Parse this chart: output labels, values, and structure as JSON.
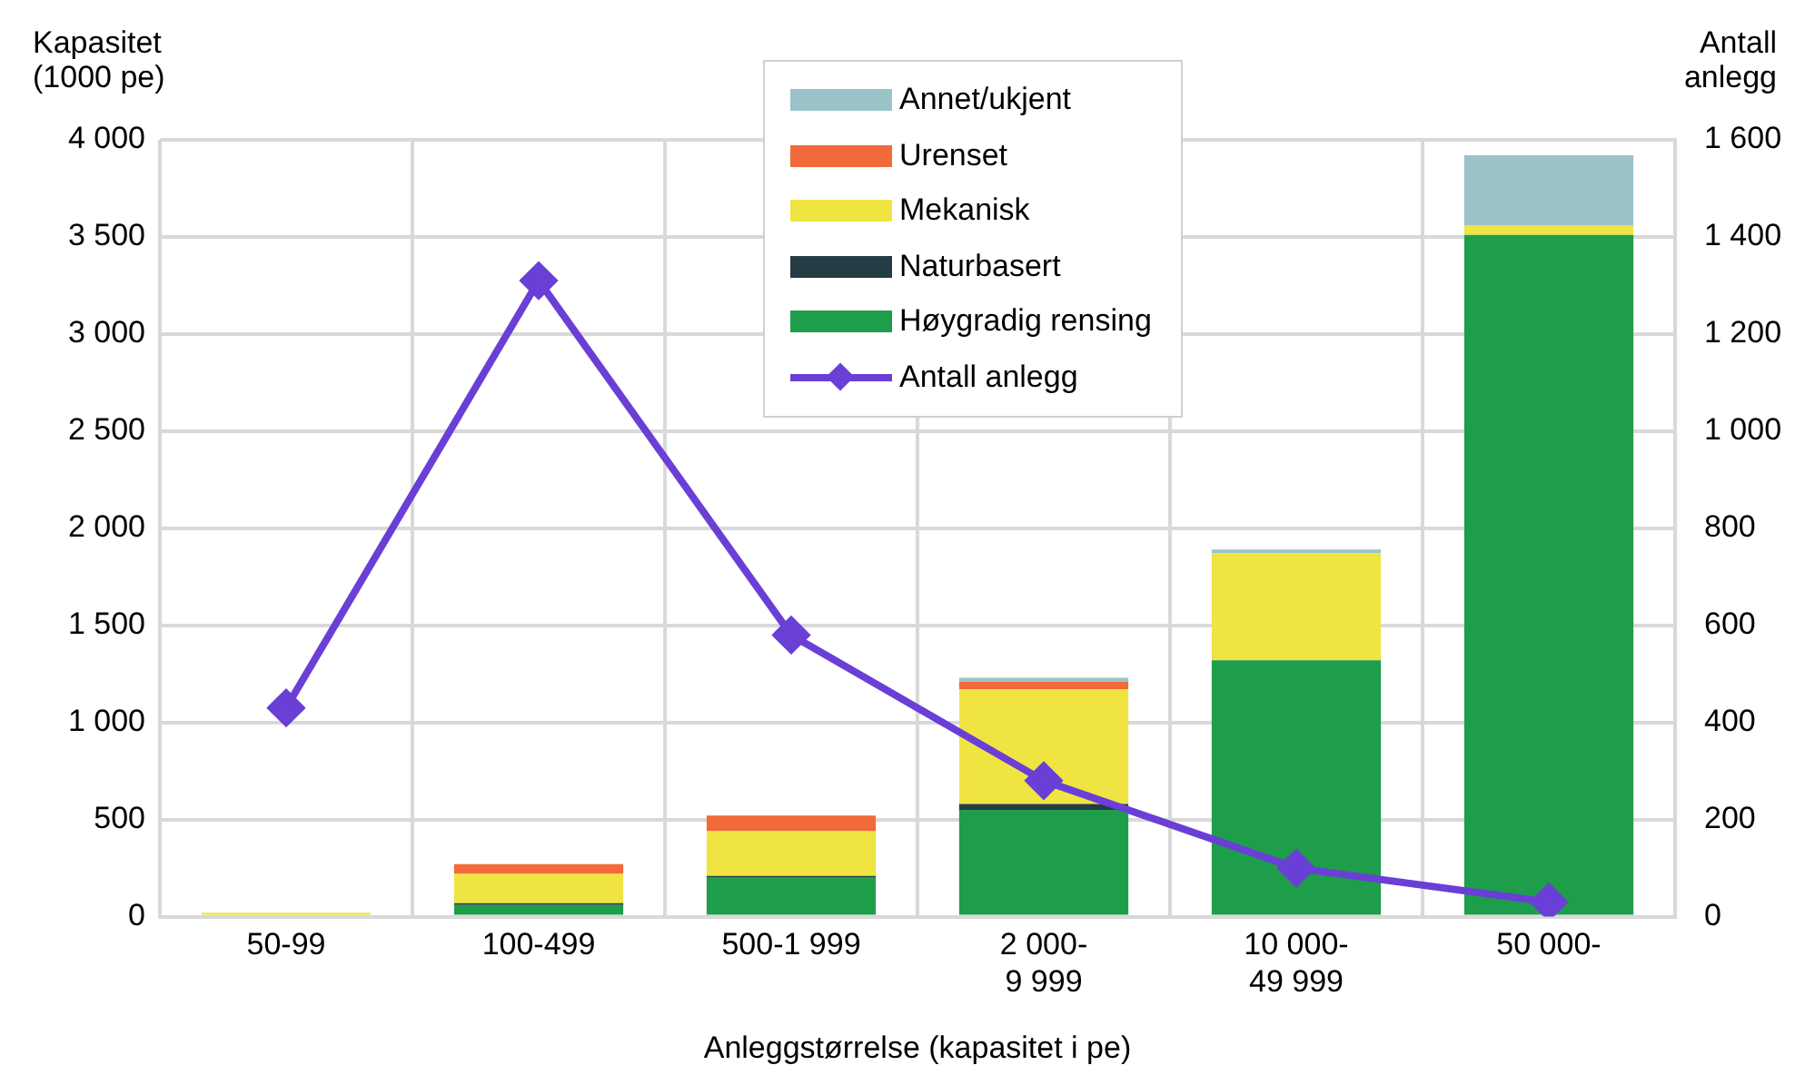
{
  "chart_data": {
    "type": "bar",
    "stacked": true,
    "xlabel": "Anleggstørrelse (kapasitet i pe)",
    "ylabel": "Kapasitet\n(1000 pe)",
    "y2label": "Antall\nanlegg",
    "categories": [
      "50-99",
      "100-499",
      "500-1 999",
      "2 000-9 999",
      "10 000-49 999",
      "50 000-"
    ],
    "series": [
      {
        "name": "Høygradig rensing",
        "color": "#1e9e4a",
        "values": [
          null,
          60,
          200,
          550,
          1320,
          3510
        ]
      },
      {
        "name": "Naturbasert",
        "color": "#243c44",
        "values": [
          null,
          10,
          10,
          30,
          null,
          null
        ]
      },
      {
        "name": "Mekanisk",
        "color": "#f0e442",
        "values": [
          20,
          150,
          230,
          590,
          550,
          50
        ]
      },
      {
        "name": "Urenset",
        "color": "#f26a3a",
        "values": [
          null,
          50,
          80,
          40,
          null,
          null
        ]
      },
      {
        "name": "Annet/ukjent",
        "color": "#9cc3c9",
        "values": [
          null,
          null,
          null,
          20,
          20,
          360
        ]
      },
      {
        "name": "Antall anlegg",
        "type": "line",
        "axis": "y2",
        "color": "#6a3fd6",
        "marker": "diamond",
        "values": [
          430,
          1310,
          580,
          280,
          100,
          30
        ]
      }
    ],
    "ylim": [
      0,
      4000
    ],
    "yticks": [
      {
        "value": 0,
        "label": "0"
      },
      {
        "value": 500,
        "label": "500"
      },
      {
        "value": 1000,
        "label": "1 000"
      },
      {
        "value": 1500,
        "label": "1 500"
      },
      {
        "value": 2000,
        "label": "2 000"
      },
      {
        "value": 2500,
        "label": "2 500"
      },
      {
        "value": 3000,
        "label": "3 000"
      },
      {
        "value": 3500,
        "label": "3 500"
      },
      {
        "value": 4000,
        "label": "4 000"
      }
    ],
    "y2lim": [
      0,
      1600
    ],
    "y2ticks": [
      {
        "value": 0,
        "label": "0"
      },
      {
        "value": 200,
        "label": "200"
      },
      {
        "value": 400,
        "label": "400"
      },
      {
        "value": 600,
        "label": "600"
      },
      {
        "value": 800,
        "label": "800"
      },
      {
        "value": 1000,
        "label": "1 000"
      },
      {
        "value": 1200,
        "label": "1 200"
      },
      {
        "value": 1400,
        "label": "1 400"
      },
      {
        "value": 1600,
        "label": "1 600"
      }
    ],
    "grid": true,
    "legend": "top"
  }
}
